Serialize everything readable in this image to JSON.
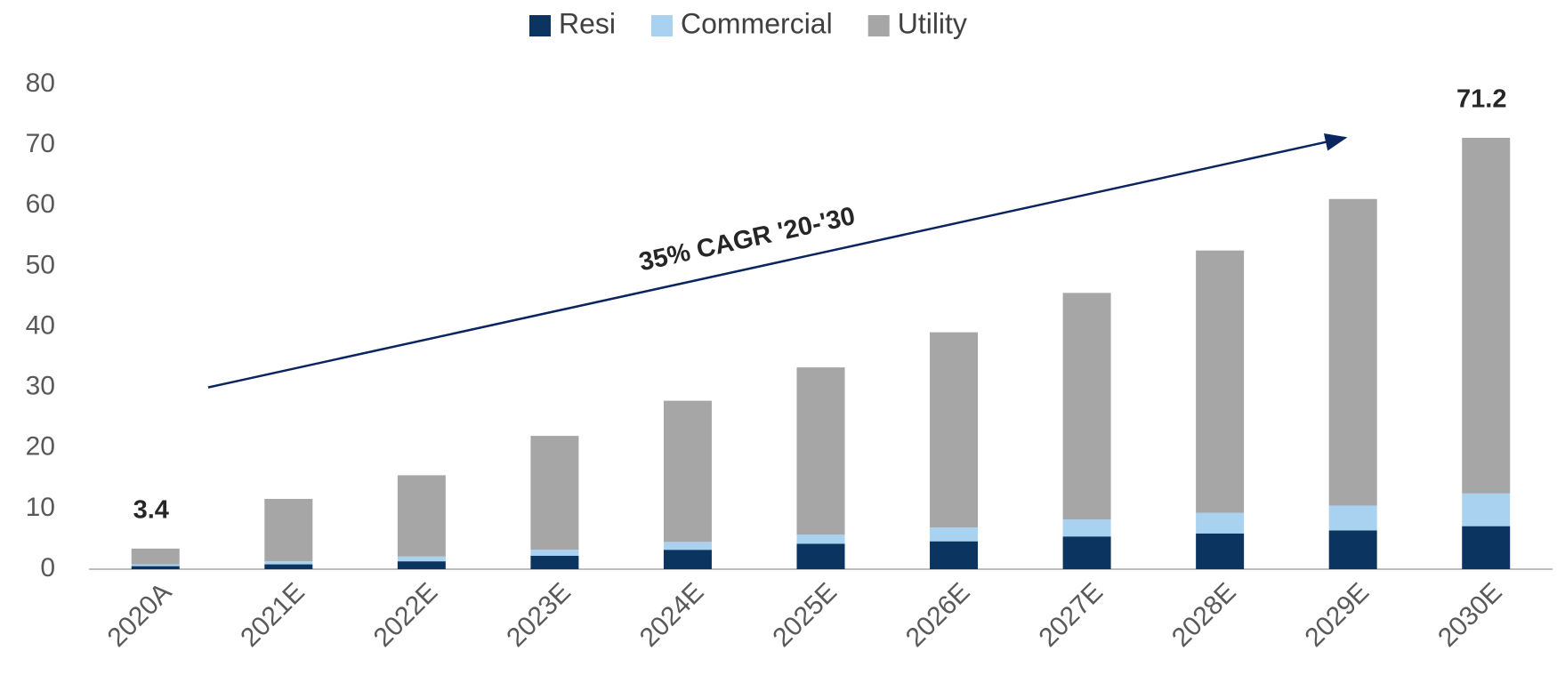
{
  "chart_data": {
    "type": "stacked_bar",
    "categories": [
      "2020A",
      "2021E",
      "2022E",
      "2023E",
      "2024E",
      "2025E",
      "2026E",
      "2027E",
      "2028E",
      "2029E",
      "2030E"
    ],
    "series": [
      {
        "name": "Resi",
        "color": "#0b3560",
        "values": [
          0.5,
          0.8,
          1.3,
          2.2,
          3.2,
          4.2,
          4.6,
          5.4,
          5.9,
          6.4,
          7.1
        ]
      },
      {
        "name": "Commercial",
        "color": "#a9d1f0",
        "values": [
          0.3,
          0.5,
          0.8,
          1.0,
          1.3,
          1.5,
          2.3,
          2.8,
          3.4,
          4.1,
          5.4
        ]
      },
      {
        "name": "Utility",
        "color": "#a6a6a6",
        "values": [
          2.6,
          10.3,
          13.4,
          18.8,
          23.3,
          27.6,
          32.2,
          37.4,
          43.3,
          50.6,
          58.7
        ]
      }
    ],
    "total_labels": [
      {
        "category": "2020A",
        "value": 3.4
      },
      {
        "category": "2030E",
        "value": 71.2
      }
    ],
    "annotation": "35% CAGR '20-'30",
    "ylim": [
      0,
      80
    ],
    "yticks": [
      0,
      10,
      20,
      30,
      40,
      50,
      60,
      70,
      80
    ],
    "legend": "top"
  }
}
